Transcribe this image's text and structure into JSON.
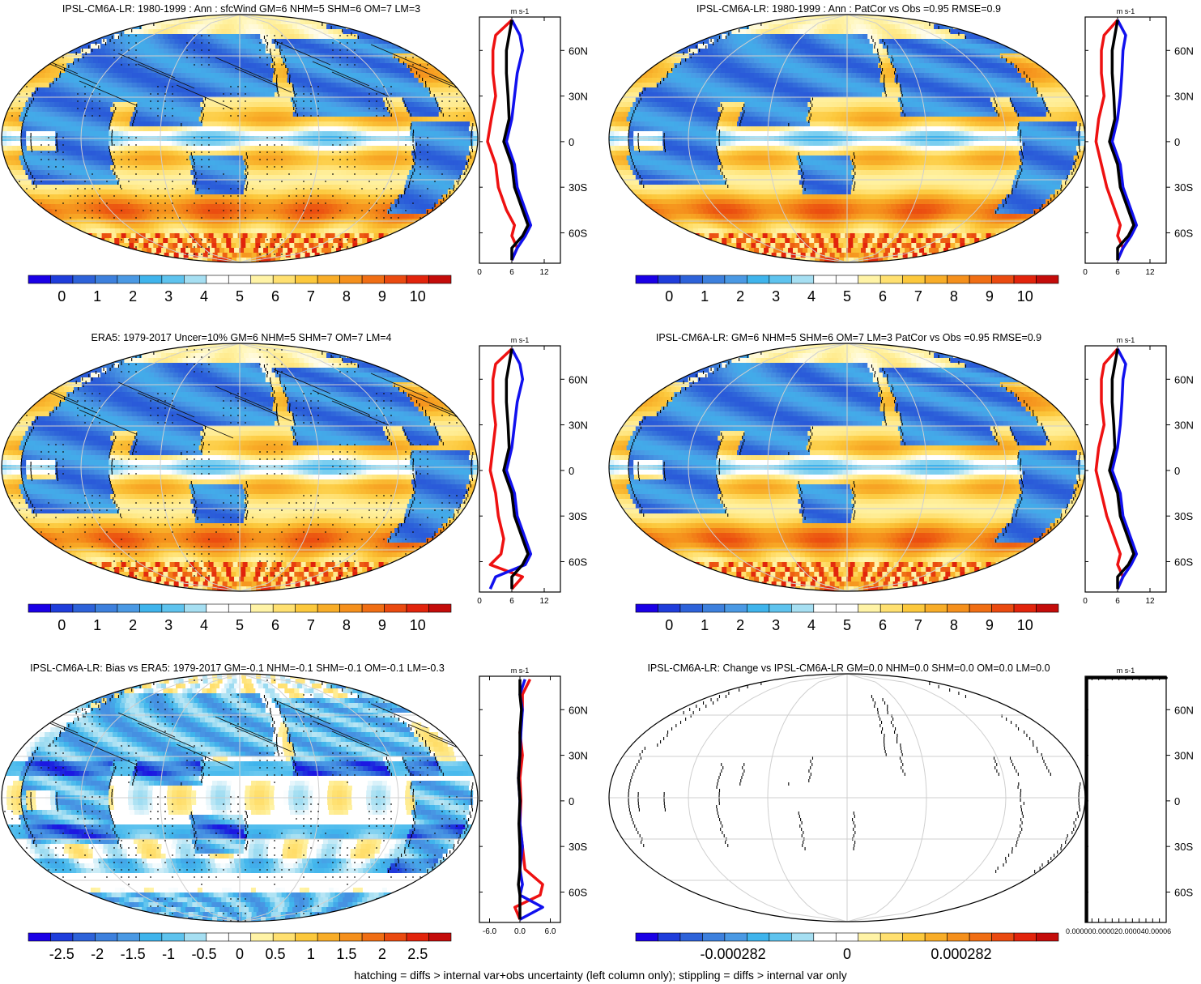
{
  "footer": "hatching = diffs > internal var+obs uncertainty (left column only); stippling = diffs > internal var only",
  "profile_unit": "m s-1",
  "lat_ticks": [
    "60N",
    "30N",
    "0",
    "30S",
    "60S"
  ],
  "colors": {
    "cmap": [
      "#1a00e6",
      "#1f3ddb",
      "#2d62d9",
      "#3d80dd",
      "#4a99e4",
      "#3fb4ec",
      "#5ec3ee",
      "#a6dff2",
      "#ffffff",
      "#ffffff",
      "#fff3a6",
      "#ffe070",
      "#fcc83c",
      "#f8ad28",
      "#f5901c",
      "#f06e14",
      "#ea4a10",
      "#e2240c",
      "#c40c0a"
    ],
    "model": "#000000",
    "low": "#ee1111",
    "high": "#1111ee"
  },
  "panels": [
    {
      "title": "IPSL-CM6A-LR: 1980-1999 : Ann : sfcWind GM=6 NHM=5 SHM=6 OM=7 LM=3",
      "map_pattern": "mean",
      "hatch": true,
      "stipple": true,
      "colorbar_labels": [
        "0",
        "1",
        "2",
        "3",
        "4",
        "5",
        "6",
        "7",
        "8",
        "9",
        "10"
      ],
      "profile": {
        "xlim": [
          0,
          15
        ],
        "xticks": [
          "0",
          "6",
          "12"
        ],
        "kind": "mean-model"
      }
    },
    {
      "title": "IPSL-CM6A-LR: 1980-1999 : Ann : PatCor vs Obs =0.95 RMSE=0.9",
      "map_pattern": "mean",
      "hatch": false,
      "stipple": false,
      "colorbar_labels": [
        "0",
        "1",
        "2",
        "3",
        "4",
        "5",
        "6",
        "7",
        "8",
        "9",
        "10"
      ],
      "profile": {
        "xlim": [
          0,
          15
        ],
        "xticks": [
          "0",
          "6",
          "12"
        ],
        "kind": "mean-model"
      }
    },
    {
      "title": "ERA5: 1979-2017 Uncer=10% GM=6 NHM=5 SHM=7 OM=7 LM=4",
      "map_pattern": "mean",
      "hatch": true,
      "stipple": true,
      "colorbar_labels": [
        "0",
        "1",
        "2",
        "3",
        "4",
        "5",
        "6",
        "7",
        "8",
        "9",
        "10"
      ],
      "profile": {
        "xlim": [
          0,
          15
        ],
        "xticks": [
          "0",
          "6",
          "12"
        ],
        "kind": "mean-obs"
      }
    },
    {
      "title": "IPSL-CM6A-LR: GM=6 NHM=5 SHM=6 OM=7 LM=3 PatCor vs Obs =0.95 RMSE=0.9",
      "map_pattern": "mean",
      "hatch": false,
      "stipple": false,
      "colorbar_labels": [
        "0",
        "1",
        "2",
        "3",
        "4",
        "5",
        "6",
        "7",
        "8",
        "9",
        "10"
      ],
      "profile": {
        "xlim": [
          0,
          15
        ],
        "xticks": [
          "0",
          "6",
          "12"
        ],
        "kind": "mean-model"
      }
    },
    {
      "title": "IPSL-CM6A-LR: Bias vs ERA5: 1979-2017 GM=-0.1 NHM=-0.1 SHM=-0.1 OM=-0.1 LM=-0.3",
      "map_pattern": "bias",
      "hatch": true,
      "stipple": true,
      "colorbar_labels": [
        "-2.5",
        "-2",
        "-1.5",
        "-1",
        "-0.5",
        "0",
        "0.5",
        "1",
        "1.5",
        "2",
        "2.5"
      ],
      "profile": {
        "xlim": [
          -8,
          8
        ],
        "xticks": [
          "-6.0",
          "0.0",
          "6.0"
        ],
        "kind": "bias"
      }
    },
    {
      "title": "IPSL-CM6A-LR: Change vs IPSL-CM6A-LR GM=0.0 NHM=0.0 SHM=0.0 OM=0.0 LM=0.0",
      "map_pattern": "blank",
      "hatch": false,
      "stipple": false,
      "colorbar_labels": [
        "-0.000282",
        "0",
        "0.000282"
      ],
      "profile": {
        "xlim": [
          0,
          6e-05
        ],
        "xticks": [
          "0.00000",
          "0.00002",
          "0.00004",
          "0.00006"
        ],
        "kind": "zero"
      }
    }
  ],
  "chart_data": [
    {
      "type": "heatmap",
      "title": "IPSL-CM6A-LR: 1980-1999 : Ann : sfcWind GM=6 NHM=5 SHM=6 OM=7 LM=3",
      "colorbar": [
        0,
        1,
        2,
        3,
        4,
        5,
        6,
        7,
        8,
        9,
        10
      ],
      "profile": {
        "type": "line",
        "lat": [
          80,
          70,
          60,
          45,
          30,
          15,
          0,
          -15,
          -30,
          -45,
          -55,
          -62,
          -70,
          -78
        ],
        "series": [
          {
            "color": "black",
            "values": [
              6,
              5.5,
              5,
              5,
              5.3,
              5.5,
              4.5,
              6,
              6.5,
              8,
              9,
              8,
              6,
              6
            ]
          },
          {
            "color": "blue",
            "values": [
              6,
              7.5,
              8,
              7,
              6.5,
              6,
              5,
              6.5,
              7,
              8.5,
              9.5,
              8.5,
              7,
              6
            ]
          },
          {
            "color": "red",
            "values": [
              6,
              3,
              2.5,
              2.5,
              3,
              2.2,
              1.5,
              3,
              3.5,
              5,
              6.5,
              6,
              7,
              6
            ]
          }
        ]
      }
    },
    {
      "type": "heatmap",
      "title": "IPSL-CM6A-LR: 1980-1999 : Ann : PatCor vs Obs =0.95 RMSE=0.9",
      "colorbar": [
        0,
        1,
        2,
        3,
        4,
        5,
        6,
        7,
        8,
        9,
        10
      ],
      "profile": {
        "type": "line",
        "lat": [
          80,
          70,
          60,
          45,
          30,
          15,
          0,
          -15,
          -30,
          -45,
          -55,
          -62,
          -70,
          -78
        ],
        "series": [
          {
            "color": "black",
            "values": [
              6,
              5.5,
              5,
              5,
              5.3,
              5.5,
              4.5,
              6,
              6.5,
              8,
              9,
              8,
              6,
              6
            ]
          },
          {
            "color": "blue",
            "values": [
              6,
              7.5,
              7,
              6.8,
              6.5,
              6,
              5,
              6.5,
              7,
              8.5,
              9.5,
              8.5,
              7,
              6
            ]
          },
          {
            "color": "red",
            "values": [
              6,
              3.5,
              3,
              3,
              3.5,
              2.5,
              2,
              3,
              4,
              5.5,
              6.5,
              6,
              7,
              6
            ]
          }
        ]
      }
    },
    {
      "type": "heatmap",
      "title": "ERA5: 1979-2017 Uncer=10% GM=6 NHM=5 SHM=7 OM=7 LM=4",
      "colorbar": [
        0,
        1,
        2,
        3,
        4,
        5,
        6,
        7,
        8,
        9,
        10
      ],
      "profile": {
        "type": "line",
        "lat": [
          80,
          70,
          60,
          45,
          30,
          15,
          0,
          -15,
          -30,
          -45,
          -55,
          -62,
          -70,
          -78
        ],
        "series": [
          {
            "color": "black",
            "values": [
              6,
              5.5,
              5,
              5,
              5.3,
              5.5,
              4.5,
              6,
              6.5,
              8,
              9,
              8,
              6,
              6
            ]
          },
          {
            "color": "blue",
            "values": [
              6,
              7.5,
              8,
              7,
              6.5,
              6,
              5,
              6.5,
              7,
              8.5,
              9.5,
              8.5,
              3,
              2
            ]
          },
          {
            "color": "red",
            "values": [
              6,
              3,
              2.5,
              2.5,
              3,
              2.5,
              2,
              3,
              3.5,
              4.5,
              4,
              2,
              8,
              6
            ]
          }
        ]
      }
    },
    {
      "type": "heatmap",
      "title": "IPSL-CM6A-LR: GM=6 NHM=5 SHM=6 OM=7 LM=3 PatCor vs Obs =0.95 RMSE=0.9",
      "colorbar": [
        0,
        1,
        2,
        3,
        4,
        5,
        6,
        7,
        8,
        9,
        10
      ],
      "profile": {
        "type": "line",
        "lat": [
          80,
          70,
          60,
          45,
          30,
          15,
          0,
          -15,
          -30,
          -45,
          -55,
          -62,
          -70,
          -78
        ],
        "series": [
          {
            "color": "black",
            "values": [
              6,
              5.5,
              5,
              5,
              5.3,
              5.5,
              4.5,
              6,
              6.5,
              8,
              9,
              8,
              6,
              6
            ]
          },
          {
            "color": "blue",
            "values": [
              6,
              7.5,
              7,
              6.8,
              6.5,
              6,
              5,
              6.5,
              7,
              8.5,
              9.5,
              8.5,
              7,
              6
            ]
          },
          {
            "color": "red",
            "values": [
              6,
              3.5,
              3,
              3,
              3.5,
              2.5,
              2,
              3,
              4,
              5.5,
              6.5,
              6,
              7,
              6
            ]
          }
        ]
      }
    },
    {
      "type": "heatmap",
      "title": "IPSL-CM6A-LR: Bias vs ERA5: 1979-2017 GM=-0.1 NHM=-0.1 SHM=-0.1 OM=-0.1 LM=-0.3",
      "colorbar": [
        -2.5,
        -2,
        -1.5,
        -1,
        -0.5,
        0,
        0.5,
        1,
        1.5,
        2,
        2.5
      ],
      "profile": {
        "type": "line",
        "lat": [
          80,
          70,
          60,
          45,
          30,
          15,
          0,
          -15,
          -30,
          -45,
          -55,
          -62,
          -70,
          -78
        ],
        "series": [
          {
            "color": "black",
            "values": [
              0,
              0,
              0.3,
              0,
              0,
              -0.3,
              0,
              -0.2,
              0,
              0,
              -0.3,
              0,
              0,
              0
            ]
          },
          {
            "color": "blue",
            "values": [
              1,
              0,
              0.5,
              0.2,
              0,
              -0.3,
              0,
              0,
              0.5,
              0,
              0.5,
              0,
              4.5,
              0
            ]
          },
          {
            "color": "red",
            "values": [
              2,
              0.5,
              0.5,
              0,
              0.5,
              0,
              0.2,
              0,
              0.5,
              1,
              4.5,
              4,
              -1,
              0
            ]
          }
        ]
      }
    },
    {
      "type": "heatmap",
      "title": "IPSL-CM6A-LR: Change vs IPSL-CM6A-LR GM=0.0 NHM=0.0 SHM=0.0 OM=0.0 LM=0.0",
      "colorbar": [
        -0.000282,
        0,
        0.000282
      ],
      "profile": {
        "type": "line",
        "lat": [
          80,
          -78
        ],
        "series": [
          {
            "color": "black",
            "values": [
              0,
              0
            ]
          }
        ]
      }
    }
  ]
}
